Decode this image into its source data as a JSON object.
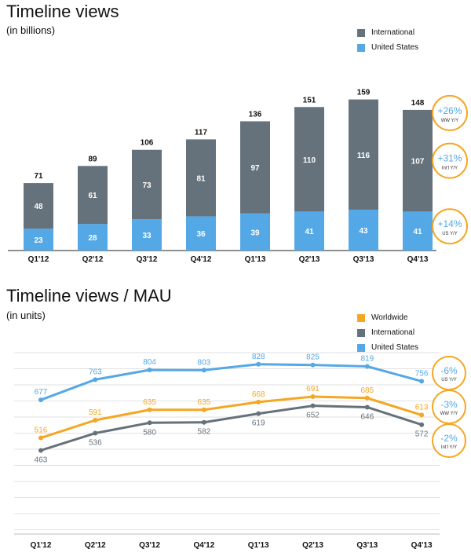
{
  "chart_data": [
    {
      "type": "bar",
      "title": "Timeline views",
      "subtitle": "(in billions)",
      "categories": [
        "Q1'12",
        "Q2'12",
        "Q3'12",
        "Q4'12",
        "Q1'13",
        "Q2'13",
        "Q3'13",
        "Q4'13"
      ],
      "series": [
        {
          "name": "United States",
          "color": "#55A8E6",
          "values": [
            23,
            28,
            33,
            36,
            39,
            41,
            43,
            41
          ]
        },
        {
          "name": "International",
          "color": "#66727B",
          "values": [
            48,
            61,
            73,
            81,
            97,
            110,
            116,
            107
          ]
        }
      ],
      "totals": [
        71,
        89,
        106,
        117,
        136,
        151,
        159,
        148
      ],
      "stacked": true,
      "ylim": [
        0,
        180
      ],
      "callouts": [
        {
          "value": "+26%",
          "label": "WW Y/Y",
          "series": "Total"
        },
        {
          "value": "+31%",
          "label": "Int'l Y/Y",
          "series": "International"
        },
        {
          "value": "+14%",
          "label": "US Y/Y",
          "series": "United States"
        }
      ],
      "callout_color": "#F5A623"
    },
    {
      "type": "line",
      "title": "Timeline views / MAU",
      "subtitle": "(in units)",
      "categories": [
        "Q1'12",
        "Q2'12",
        "Q3'12",
        "Q4'12",
        "Q1'13",
        "Q2'13",
        "Q3'13",
        "Q4'13"
      ],
      "series": [
        {
          "name": "Worldwide",
          "color": "#F5A623",
          "values": [
            516,
            591,
            635,
            635,
            668,
            691,
            685,
            613
          ]
        },
        {
          "name": "International",
          "color": "#66727B",
          "values": [
            463,
            536,
            580,
            582,
            619,
            652,
            646,
            572
          ]
        },
        {
          "name": "United States",
          "color": "#55A8E6",
          "values": [
            677,
            763,
            804,
            803,
            828,
            825,
            819,
            756
          ]
        }
      ],
      "ylim": [
        0,
        900
      ],
      "grid": true,
      "callouts": [
        {
          "value": "-6%",
          "label": "US Y/Y",
          "series": "United States"
        },
        {
          "value": "-3%",
          "label": "WW Y/Y",
          "series": "Worldwide"
        },
        {
          "value": "-2%",
          "label": "Int'l Y/Y",
          "series": "International"
        }
      ],
      "callout_color": "#F5A623"
    }
  ]
}
